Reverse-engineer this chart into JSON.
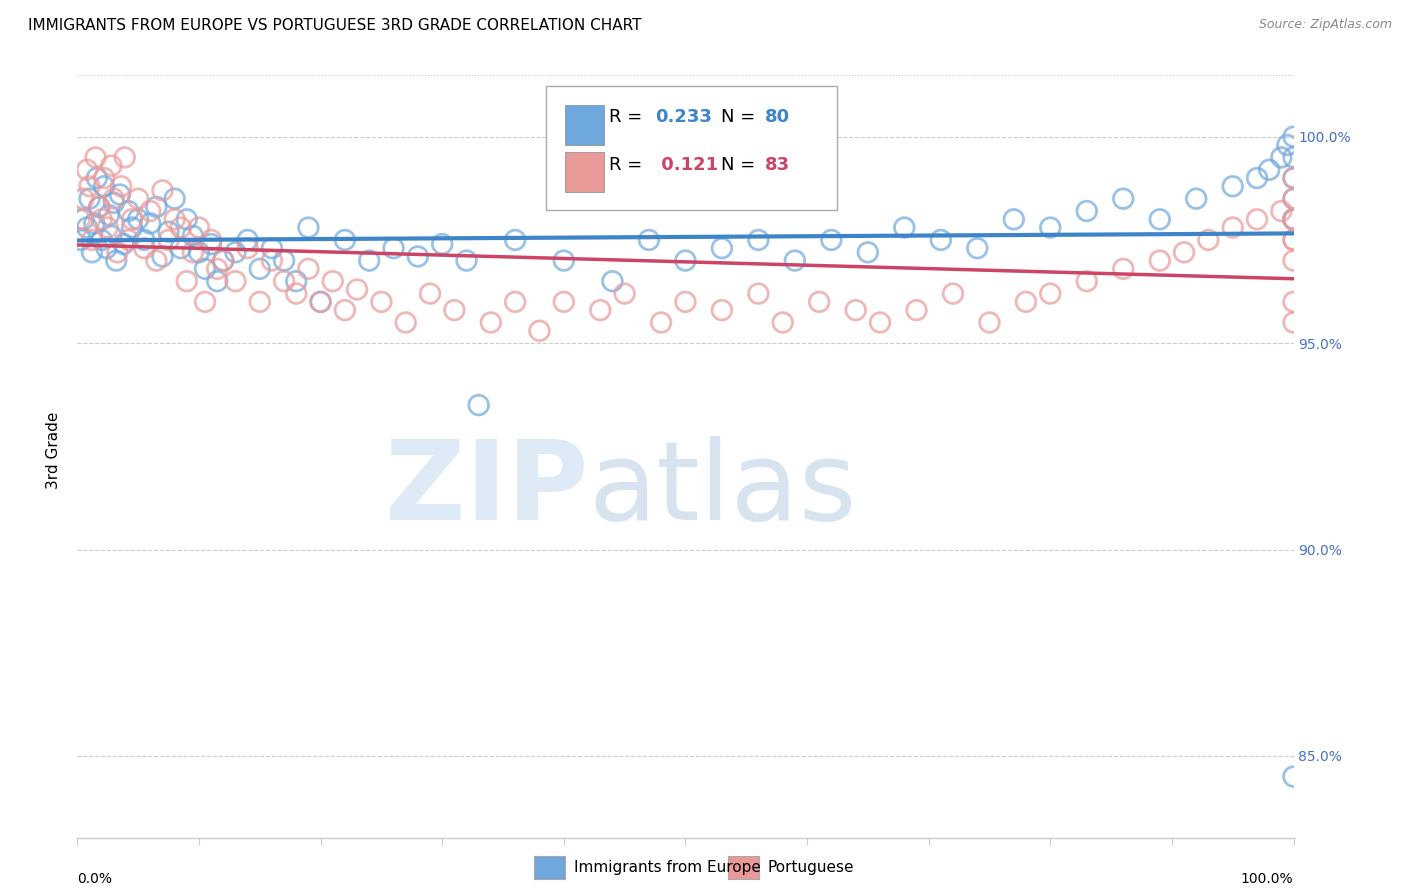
{
  "title": "IMMIGRANTS FROM EUROPE VS PORTUGUESE 3RD GRADE CORRELATION CHART",
  "source": "Source: ZipAtlas.com",
  "ylabel": "3rd Grade",
  "xmin": 0.0,
  "xmax": 100.0,
  "ymin": 83.0,
  "ymax": 101.8,
  "ytick_positions": [
    85,
    90,
    95,
    100
  ],
  "ytick_labels": [
    "85.0%",
    "90.0%",
    "95.0%",
    "100.0%"
  ],
  "blue_color": "#6fa8dc",
  "pink_color": "#ea9999",
  "blue_line_color": "#3d85c8",
  "pink_line_color": "#cc4466",
  "R_blue": 0.233,
  "N_blue": 80,
  "R_pink": 0.121,
  "N_pink": 83,
  "blue_scatter_x": [
    0.3,
    0.5,
    0.8,
    1.0,
    1.2,
    1.4,
    1.6,
    1.8,
    2.0,
    2.2,
    2.4,
    2.6,
    2.8,
    3.0,
    3.2,
    3.5,
    3.8,
    4.2,
    4.5,
    5.0,
    5.5,
    6.0,
    6.5,
    7.0,
    7.5,
    8.0,
    8.5,
    9.0,
    9.5,
    10.0,
    10.5,
    11.0,
    11.5,
    12.0,
    13.0,
    14.0,
    15.0,
    16.0,
    17.0,
    18.0,
    19.0,
    20.0,
    22.0,
    24.0,
    26.0,
    28.0,
    30.0,
    32.0,
    33.0,
    36.0,
    40.0,
    44.0,
    47.0,
    50.0,
    53.0,
    56.0,
    59.0,
    62.0,
    65.0,
    68.0,
    71.0,
    74.0,
    77.0,
    80.0,
    83.0,
    86.0,
    89.0,
    92.0,
    95.0,
    97.0,
    98.0,
    99.0,
    99.5,
    100.0,
    100.0,
    100.0,
    100.0,
    100.0,
    100.0,
    100.0
  ],
  "blue_scatter_y": [
    97.5,
    98.0,
    97.8,
    98.5,
    97.2,
    97.9,
    99.0,
    98.3,
    97.5,
    98.8,
    97.3,
    98.1,
    97.6,
    98.4,
    97.0,
    98.6,
    97.4,
    98.2,
    97.8,
    98.0,
    97.5,
    97.9,
    98.3,
    97.1,
    97.7,
    98.5,
    97.3,
    98.0,
    97.6,
    97.2,
    96.8,
    97.4,
    96.5,
    97.0,
    97.2,
    97.5,
    96.8,
    97.3,
    97.0,
    96.5,
    97.8,
    96.0,
    97.5,
    97.0,
    97.3,
    97.1,
    97.4,
    97.0,
    93.5,
    97.5,
    97.0,
    96.5,
    97.5,
    97.0,
    97.3,
    97.5,
    97.0,
    97.5,
    97.2,
    97.8,
    97.5,
    97.3,
    98.0,
    97.8,
    98.2,
    98.5,
    98.0,
    98.5,
    98.8,
    99.0,
    99.2,
    99.5,
    99.8,
    100.0,
    99.5,
    98.0,
    98.5,
    99.0,
    98.0,
    84.5
  ],
  "pink_scatter_x": [
    0.2,
    0.5,
    0.8,
    1.0,
    1.2,
    1.5,
    1.8,
    2.0,
    2.2,
    2.5,
    2.8,
    3.0,
    3.3,
    3.6,
    3.9,
    4.2,
    4.5,
    5.0,
    5.5,
    6.0,
    6.5,
    7.0,
    7.5,
    8.0,
    8.5,
    9.0,
    9.5,
    10.0,
    10.5,
    11.0,
    11.5,
    12.0,
    13.0,
    14.0,
    15.0,
    16.0,
    17.0,
    18.0,
    19.0,
    20.0,
    21.0,
    22.0,
    23.0,
    25.0,
    27.0,
    29.0,
    31.0,
    34.0,
    36.0,
    38.0,
    40.0,
    43.0,
    45.0,
    48.0,
    50.0,
    53.0,
    56.0,
    58.0,
    61.0,
    64.0,
    66.0,
    69.0,
    72.0,
    75.0,
    78.0,
    80.0,
    83.0,
    86.0,
    89.0,
    91.0,
    93.0,
    95.0,
    97.0,
    99.0,
    100.0,
    100.0,
    100.0,
    100.0,
    100.0,
    100.0,
    100.0,
    100.0,
    100.0
  ],
  "pink_scatter_y": [
    98.0,
    98.5,
    99.2,
    98.8,
    97.5,
    99.5,
    98.3,
    98.0,
    99.0,
    97.8,
    99.3,
    98.5,
    97.2,
    98.8,
    99.5,
    97.5,
    98.0,
    98.5,
    97.3,
    98.2,
    97.0,
    98.7,
    97.5,
    98.0,
    97.8,
    96.5,
    97.2,
    97.8,
    96.0,
    97.5,
    96.8,
    97.0,
    96.5,
    97.3,
    96.0,
    97.0,
    96.5,
    96.2,
    96.8,
    96.0,
    96.5,
    95.8,
    96.3,
    96.0,
    95.5,
    96.2,
    95.8,
    95.5,
    96.0,
    95.3,
    96.0,
    95.8,
    96.2,
    95.5,
    96.0,
    95.8,
    96.2,
    95.5,
    96.0,
    95.8,
    95.5,
    95.8,
    96.2,
    95.5,
    96.0,
    96.2,
    96.5,
    96.8,
    97.0,
    97.2,
    97.5,
    97.8,
    98.0,
    98.2,
    98.5,
    98.0,
    97.0,
    97.5,
    98.0,
    95.5,
    96.0,
    97.5,
    99.0
  ],
  "title_fontsize": 11,
  "axis_label_fontsize": 9,
  "tick_fontsize": 10,
  "legend_fontsize": 13,
  "source_fontsize": 9,
  "watermark_zip_color": "#c8ddf0",
  "watermark_atlas_color": "#c8ddf0",
  "grid_color": "#cccccc",
  "spine_color": "#cccccc"
}
